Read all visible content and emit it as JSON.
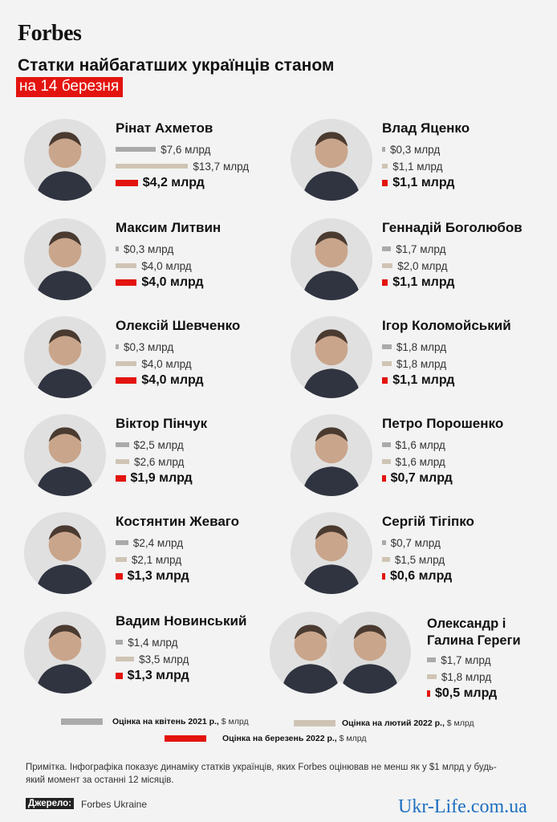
{
  "brand": "Forbes",
  "header": {
    "title": "Статки найбагатших українців станом",
    "subtitle": "на 14 березня"
  },
  "colors": {
    "april_2021": "#aaaaaa",
    "feb_2022": "#cfc4b4",
    "march_2022": "#e3140f"
  },
  "chart_data": {
    "type": "bar",
    "orientation": "horizontal",
    "unit": "$ млрд",
    "title": "Статки найбагатших українців станом",
    "subtitle": "на 14 березня",
    "series": [
      {
        "key": "april_2021",
        "name": "Оцінка на квітень 2021 р.",
        "unit_label": "$ млрд"
      },
      {
        "key": "feb_2022",
        "name": "Оцінка на лютий 2022 р.",
        "unit_label": "$ млрд"
      },
      {
        "key": "march_2022",
        "name": "Оцінка на березень 2022 р.",
        "unit_label": "$ млрд"
      }
    ],
    "people": [
      {
        "name": "Рінат Ахметов",
        "values": [
          7.6,
          13.7,
          4.2
        ],
        "labels": [
          "$7,6 млрд",
          "$13,7 млрд",
          "$4,2 млрд"
        ]
      },
      {
        "name": "Влад Яценко",
        "values": [
          0.3,
          1.1,
          1.1
        ],
        "labels": [
          "$0,3 млрд",
          "$1,1 млрд",
          "$1,1 млрд"
        ]
      },
      {
        "name": "Максим Литвин",
        "values": [
          0.3,
          4.0,
          4.0
        ],
        "labels": [
          "$0,3 млрд",
          "$4,0 млрд",
          "$4,0 млрд"
        ]
      },
      {
        "name": "Геннадій Боголюбов",
        "values": [
          1.7,
          2.0,
          1.1
        ],
        "labels": [
          "$1,7 млрд",
          "$2,0 млрд",
          "$1,1 млрд"
        ]
      },
      {
        "name": "Олексій Шевченко",
        "values": [
          0.3,
          4.0,
          4.0
        ],
        "labels": [
          "$0,3 млрд",
          "$4,0 млрд",
          "$4,0 млрд"
        ]
      },
      {
        "name": "Ігор Коломойський",
        "values": [
          1.8,
          1.8,
          1.1
        ],
        "labels": [
          "$1,8 млрд",
          "$1,8 млрд",
          "$1,1 млрд"
        ]
      },
      {
        "name": "Віктор Пінчук",
        "values": [
          2.5,
          2.6,
          1.9
        ],
        "labels": [
          "$2,5 млрд",
          "$2,6 млрд",
          "$1,9 млрд"
        ]
      },
      {
        "name": "Петро Порошенко",
        "values": [
          1.6,
          1.6,
          0.7
        ],
        "labels": [
          "$1,6 млрд",
          "$1,6 млрд",
          "$0,7 млрд"
        ]
      },
      {
        "name": "Костянтин Жеваго",
        "values": [
          2.4,
          2.1,
          1.3
        ],
        "labels": [
          "$2,4 млрд",
          "$2,1 млрд",
          "$1,3 млрд"
        ]
      },
      {
        "name": "Сергій Тігіпко",
        "values": [
          0.7,
          1.5,
          0.6
        ],
        "labels": [
          "$0,7 млрд",
          "$1,5 млрд",
          "$0,6 млрд"
        ]
      },
      {
        "name": "Вадим Новинський",
        "values": [
          1.4,
          3.5,
          1.3
        ],
        "labels": [
          "$1,4 млрд",
          "$3,5 млрд",
          "$1,3 млрд"
        ]
      },
      {
        "name": "Олександр і Галина Гереги",
        "values": [
          1.7,
          1.8,
          0.5
        ],
        "labels": [
          "$1,7 млрд",
          "$1,8 млрд",
          "$0,5 млрд"
        ]
      }
    ]
  },
  "legend": {
    "april_2021": {
      "label": "Оцінка на квітень 2021 р.,",
      "unit": "$ млрд"
    },
    "feb_2022": {
      "label": "Оцінка на лютий 2022 р.,",
      "unit": "$ млрд"
    },
    "march_2022": {
      "label": "Оцінка на березень 2022 р.,",
      "unit": "$ млрд"
    }
  },
  "footer": {
    "note": "Примітка. Інфографіка показує динаміку статків українців, яких Forbes оцінював не менш як у $1 млрд у будь-який момент за останні 12 місяців.",
    "source_label": "Джерело:",
    "source": "Forbes Ukraine"
  },
  "watermark": "Ukr-Life.com.ua"
}
